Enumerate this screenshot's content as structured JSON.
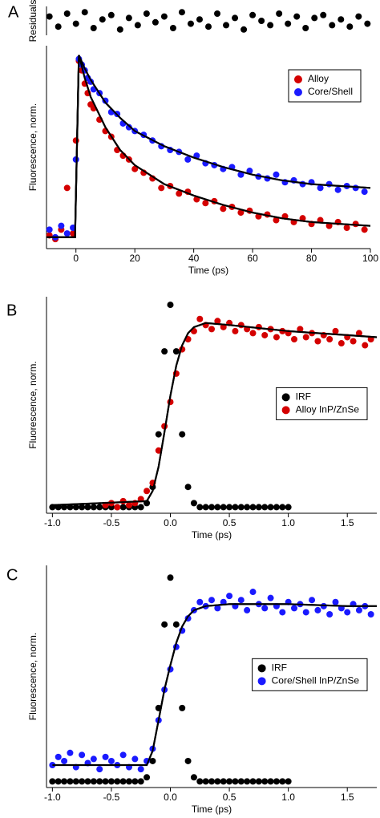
{
  "chart_data": [
    {
      "type": "scatter",
      "ylabel": "Residuals",
      "panel_label": "A",
      "xlim": [
        -10,
        100
      ],
      "ylim": [
        -1,
        1
      ],
      "series": [
        {
          "color": "#000000",
          "x": [
            -9,
            -6,
            -3,
            0,
            3,
            6,
            9,
            12,
            15,
            18,
            21,
            24,
            27,
            30,
            33,
            36,
            39,
            42,
            45,
            48,
            51,
            54,
            57,
            60,
            63,
            66,
            69,
            72,
            75,
            78,
            81,
            84,
            87,
            90,
            93,
            96,
            99
          ],
          "values": [
            0.3,
            -0.4,
            0.5,
            -0.2,
            0.6,
            -0.5,
            0.1,
            0.4,
            -0.6,
            0.2,
            -0.3,
            0.5,
            -0.1,
            0.3,
            -0.5,
            0.6,
            -0.2,
            0.1,
            -0.4,
            0.5,
            -0.3,
            0.2,
            -0.6,
            0.4,
            0.0,
            -0.3,
            0.5,
            -0.2,
            0.3,
            -0.5,
            0.2,
            0.4,
            -0.3,
            0.1,
            -0.4,
            0.3,
            -0.2
          ]
        }
      ]
    },
    {
      "type": "scatter",
      "xlabel": "Time (ps)",
      "ylabel": "Fluorescence, norm.",
      "xlim": [
        -10,
        100
      ],
      "ylim": [
        -0.02,
        1.05
      ],
      "xticks": [
        0,
        20,
        40,
        60,
        80,
        100
      ],
      "legend": "upper right",
      "series": [
        {
          "name": "Alloy",
          "color": "#d40000",
          "x": [
            -9,
            -7,
            -5,
            -3,
            -1,
            0,
            1,
            2,
            3,
            4,
            5,
            6,
            8,
            10,
            12,
            14,
            16,
            18,
            20,
            23,
            26,
            29,
            32,
            35,
            38,
            41,
            44,
            47,
            50,
            53,
            56,
            59,
            62,
            65,
            68,
            71,
            74,
            77,
            80,
            83,
            86,
            89,
            92,
            95,
            98
          ],
          "values": [
            0.05,
            0.03,
            0.08,
            0.3,
            0.06,
            0.55,
            0.97,
            0.92,
            0.85,
            0.8,
            0.74,
            0.72,
            0.66,
            0.6,
            0.57,
            0.5,
            0.47,
            0.45,
            0.4,
            0.38,
            0.35,
            0.3,
            0.31,
            0.27,
            0.28,
            0.24,
            0.22,
            0.23,
            0.19,
            0.2,
            0.17,
            0.18,
            0.15,
            0.16,
            0.13,
            0.15,
            0.12,
            0.14,
            0.11,
            0.13,
            0.1,
            0.12,
            0.09,
            0.11,
            0.08
          ]
        },
        {
          "name": "Core/Shell",
          "color": "#1a1aff",
          "x": [
            -9,
            -7,
            -5,
            -3,
            -1,
            0,
            1,
            2,
            3,
            4,
            5,
            6,
            8,
            10,
            12,
            14,
            16,
            18,
            20,
            23,
            26,
            29,
            32,
            35,
            38,
            41,
            44,
            47,
            50,
            53,
            56,
            59,
            62,
            65,
            68,
            71,
            74,
            77,
            80,
            83,
            86,
            89,
            92,
            95,
            98
          ],
          "values": [
            0.08,
            0.04,
            0.1,
            0.06,
            0.09,
            0.45,
            0.98,
            0.95,
            0.92,
            0.88,
            0.86,
            0.82,
            0.8,
            0.76,
            0.7,
            0.69,
            0.64,
            0.62,
            0.6,
            0.58,
            0.55,
            0.52,
            0.5,
            0.49,
            0.45,
            0.47,
            0.43,
            0.42,
            0.4,
            0.41,
            0.37,
            0.39,
            0.36,
            0.35,
            0.37,
            0.33,
            0.34,
            0.32,
            0.33,
            0.3,
            0.32,
            0.29,
            0.31,
            0.3,
            0.28
          ]
        }
      ],
      "fits": [
        {
          "color": "#000000",
          "x": [
            -10,
            -0.3,
            1,
            3,
            5,
            10,
            15,
            20,
            30,
            40,
            50,
            60,
            70,
            80,
            90,
            100
          ],
          "values": [
            0.04,
            0.04,
            1.0,
            0.88,
            0.78,
            0.62,
            0.5,
            0.42,
            0.32,
            0.26,
            0.21,
            0.17,
            0.14,
            0.12,
            0.11,
            0.1
          ]
        },
        {
          "color": "#000000",
          "x": [
            -10,
            -0.3,
            1,
            3,
            5,
            10,
            15,
            20,
            30,
            40,
            50,
            60,
            70,
            80,
            90,
            100
          ],
          "values": [
            0.04,
            0.04,
            1.0,
            0.93,
            0.87,
            0.75,
            0.67,
            0.6,
            0.52,
            0.46,
            0.41,
            0.37,
            0.34,
            0.32,
            0.31,
            0.3
          ]
        }
      ]
    },
    {
      "type": "scatter",
      "panel_label": "B",
      "xlabel": "Time (ps)",
      "ylabel": "Fluorescence, norm.",
      "xlim": [
        -1.05,
        1.75
      ],
      "ylim": [
        -0.03,
        1.04
      ],
      "xticks": [
        {
          "value": -1,
          "label": "-1.0"
        },
        {
          "value": -0.5,
          "label": "-0.5"
        },
        {
          "value": 0,
          "label": "0.0"
        },
        0.5,
        {
          "value": 1,
          "label": "1.0"
        },
        1.5
      ],
      "legend": "center right",
      "series": [
        {
          "name": "IRF",
          "color": "#000000",
          "x": [
            -1,
            -0.95,
            -0.9,
            -0.85,
            -0.8,
            -0.75,
            -0.7,
            -0.65,
            -0.6,
            -0.55,
            -0.5,
            -0.45,
            -0.4,
            -0.35,
            -0.3,
            -0.25,
            -0.2,
            -0.15,
            -0.1,
            -0.05,
            0,
            0.05,
            0.1,
            0.15,
            0.2,
            0.25,
            0.3,
            0.35,
            0.4,
            0.45,
            0.5,
            0.55,
            0.6,
            0.65,
            0.7,
            0.75,
            0.8,
            0.85,
            0.9,
            0.95,
            1
          ],
          "values": [
            0,
            0,
            0,
            0,
            0,
            0,
            0,
            0,
            0,
            0,
            0,
            0,
            0,
            0,
            0,
            0,
            0.02,
            0.1,
            0.36,
            0.77,
            1.0,
            0.77,
            0.36,
            0.1,
            0.02,
            0,
            0,
            0,
            0,
            0,
            0,
            0,
            0,
            0,
            0,
            0,
            0,
            0,
            0,
            0,
            0
          ]
        },
        {
          "name": "Alloy InP/ZnSe",
          "color": "#d40000",
          "x": [
            -0.55,
            -0.5,
            -0.45,
            -0.4,
            -0.35,
            -0.3,
            -0.25,
            -0.2,
            -0.15,
            -0.1,
            -0.05,
            0,
            0.05,
            0.1,
            0.15,
            0.2,
            0.25,
            0.3,
            0.35,
            0.4,
            0.45,
            0.5,
            0.55,
            0.6,
            0.65,
            0.7,
            0.75,
            0.8,
            0.85,
            0.9,
            0.95,
            1,
            1.05,
            1.1,
            1.15,
            1.2,
            1.25,
            1.3,
            1.35,
            1.4,
            1.45,
            1.5,
            1.55,
            1.6,
            1.65,
            1.7
          ],
          "values": [
            0.01,
            0.02,
            0,
            0.03,
            0.01,
            0.02,
            0.04,
            0.08,
            0.12,
            0.28,
            0.4,
            0.52,
            0.66,
            0.78,
            0.83,
            0.87,
            0.93,
            0.9,
            0.88,
            0.92,
            0.89,
            0.91,
            0.87,
            0.9,
            0.88,
            0.86,
            0.89,
            0.85,
            0.88,
            0.84,
            0.87,
            0.86,
            0.83,
            0.88,
            0.84,
            0.86,
            0.82,
            0.85,
            0.83,
            0.87,
            0.81,
            0.84,
            0.82,
            0.86,
            0.8,
            0.83
          ]
        }
      ],
      "fits": [
        {
          "color": "#000000",
          "x": [
            -1,
            -0.2,
            -0.15,
            -0.1,
            -0.05,
            0,
            0.05,
            0.1,
            0.15,
            0.2,
            0.3,
            0.5,
            1,
            1.5,
            1.75
          ],
          "values": [
            0.01,
            0.03,
            0.08,
            0.2,
            0.37,
            0.55,
            0.7,
            0.8,
            0.86,
            0.89,
            0.91,
            0.9,
            0.87,
            0.85,
            0.84
          ]
        }
      ]
    },
    {
      "type": "scatter",
      "panel_label": "C",
      "xlabel": "Time (ps)",
      "ylabel": "Fluorescence, norm.",
      "xlim": [
        -1.05,
        1.75
      ],
      "ylim": [
        -0.03,
        1.06
      ],
      "xticks": [
        {
          "value": -1,
          "label": "-1.0"
        },
        {
          "value": -0.5,
          "label": "-0.5"
        },
        {
          "value": 0,
          "label": "0.0"
        },
        0.5,
        {
          "value": 1,
          "label": "1.0"
        },
        1.5
      ],
      "legend": "center right",
      "series": [
        {
          "name": "IRF",
          "color": "#000000",
          "x": [
            -1,
            -0.95,
            -0.9,
            -0.85,
            -0.8,
            -0.75,
            -0.7,
            -0.65,
            -0.6,
            -0.55,
            -0.5,
            -0.45,
            -0.4,
            -0.35,
            -0.3,
            -0.25,
            -0.2,
            -0.15,
            -0.1,
            -0.05,
            0,
            0.05,
            0.1,
            0.15,
            0.2,
            0.25,
            0.3,
            0.35,
            0.4,
            0.45,
            0.5,
            0.55,
            0.6,
            0.65,
            0.7,
            0.75,
            0.8,
            0.85,
            0.9,
            0.95,
            1
          ],
          "values": [
            0,
            0,
            0,
            0,
            0,
            0,
            0,
            0,
            0,
            0,
            0,
            0,
            0,
            0,
            0,
            0,
            0.02,
            0.1,
            0.36,
            0.77,
            1.0,
            0.77,
            0.36,
            0.1,
            0.02,
            0,
            0,
            0,
            0,
            0,
            0,
            0,
            0,
            0,
            0,
            0,
            0,
            0,
            0,
            0,
            0
          ]
        },
        {
          "name": "Core/Shell InP/ZnSe",
          "color": "#1a1aff",
          "x": [
            -1,
            -0.95,
            -0.9,
            -0.85,
            -0.8,
            -0.75,
            -0.7,
            -0.65,
            -0.6,
            -0.55,
            -0.5,
            -0.45,
            -0.4,
            -0.35,
            -0.3,
            -0.25,
            -0.2,
            -0.15,
            -0.1,
            -0.05,
            0,
            0.05,
            0.1,
            0.15,
            0.2,
            0.25,
            0.3,
            0.35,
            0.4,
            0.45,
            0.5,
            0.55,
            0.6,
            0.65,
            0.7,
            0.75,
            0.8,
            0.85,
            0.9,
            0.95,
            1,
            1.05,
            1.1,
            1.15,
            1.2,
            1.25,
            1.3,
            1.35,
            1.4,
            1.45,
            1.5,
            1.55,
            1.6,
            1.65,
            1.7
          ],
          "values": [
            0.08,
            0.12,
            0.1,
            0.14,
            0.07,
            0.13,
            0.09,
            0.11,
            0.06,
            0.12,
            0.1,
            0.08,
            0.13,
            0.07,
            0.11,
            0.06,
            0.1,
            0.16,
            0.3,
            0.45,
            0.55,
            0.66,
            0.74,
            0.8,
            0.84,
            0.88,
            0.86,
            0.89,
            0.85,
            0.88,
            0.91,
            0.86,
            0.89,
            0.84,
            0.93,
            0.87,
            0.85,
            0.9,
            0.86,
            0.83,
            0.88,
            0.85,
            0.87,
            0.83,
            0.89,
            0.84,
            0.86,
            0.82,
            0.88,
            0.85,
            0.83,
            0.87,
            0.84,
            0.86,
            0.82
          ]
        }
      ],
      "fits": [
        {
          "color": "#000000",
          "x": [
            -1,
            -0.2,
            -0.15,
            -0.1,
            -0.05,
            0,
            0.05,
            0.1,
            0.15,
            0.2,
            0.3,
            0.5,
            1,
            1.5,
            1.75
          ],
          "values": [
            0.08,
            0.08,
            0.15,
            0.3,
            0.45,
            0.57,
            0.68,
            0.76,
            0.81,
            0.84,
            0.86,
            0.87,
            0.87,
            0.86,
            0.86
          ]
        }
      ]
    }
  ]
}
